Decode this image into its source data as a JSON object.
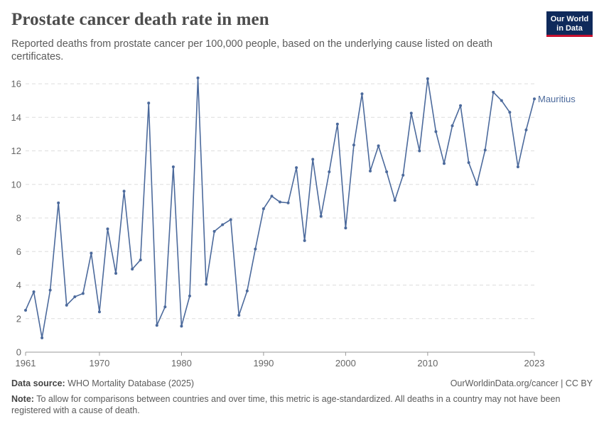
{
  "header": {
    "title": "Prostate cancer death rate in men",
    "subtitle": "Reported deaths from prostate cancer per 100,000 people, based on the underlying cause listed on death certificates."
  },
  "logo": {
    "line1": "Our World",
    "line2": "in Data",
    "bg_color": "#0f2a5b",
    "accent_color": "#c8102e"
  },
  "footer": {
    "source_label": "Data source:",
    "source_text": "WHO Mortality Database (2025)",
    "url_text": "OurWorldinData.org/cancer | CC BY",
    "note_label": "Note:",
    "note_text": "To allow for comparisons between countries and over time, this metric is age-standardized. All deaths in a country may not have been registered with a cause of death."
  },
  "chart_data": {
    "type": "line",
    "title": "Prostate cancer death rate in men",
    "xlabel": "",
    "ylabel": "",
    "xlim": [
      1961,
      2023
    ],
    "ylim": [
      0,
      16
    ],
    "x_ticks": [
      1961,
      1970,
      1980,
      1990,
      2000,
      2010,
      2023
    ],
    "y_ticks": [
      0,
      2,
      4,
      6,
      8,
      10,
      12,
      14,
      16
    ],
    "grid": "horizontal dashed",
    "legend": "inline label at line end",
    "series": [
      {
        "name": "Mauritius",
        "color": "#4c6a9c",
        "x": [
          1961,
          1962,
          1963,
          1964,
          1965,
          1966,
          1967,
          1968,
          1969,
          1970,
          1971,
          1972,
          1973,
          1974,
          1975,
          1976,
          1977,
          1978,
          1979,
          1980,
          1981,
          1982,
          1983,
          1984,
          1985,
          1986,
          1987,
          1988,
          1989,
          1990,
          1991,
          1992,
          1993,
          1994,
          1995,
          1996,
          1997,
          1998,
          1999,
          2000,
          2001,
          2002,
          2003,
          2004,
          2005,
          2006,
          2007,
          2008,
          2009,
          2010,
          2011,
          2012,
          2013,
          2014,
          2015,
          2016,
          2017,
          2018,
          2019,
          2020,
          2021,
          2022,
          2023
        ],
        "y": [
          2.5,
          3.6,
          0.85,
          3.7,
          8.9,
          2.8,
          3.3,
          3.5,
          5.9,
          2.4,
          7.35,
          4.7,
          9.6,
          4.95,
          5.5,
          14.85,
          1.6,
          2.7,
          11.05,
          1.55,
          3.35,
          16.35,
          4.05,
          7.2,
          7.6,
          7.9,
          2.2,
          3.65,
          6.15,
          8.55,
          9.3,
          8.95,
          8.9,
          11.0,
          6.65,
          11.5,
          8.1,
          10.75,
          13.6,
          7.4,
          12.35,
          15.4,
          10.8,
          12.3,
          10.75,
          9.05,
          10.55,
          14.25,
          12.0,
          16.3,
          13.15,
          11.25,
          13.5,
          14.7,
          11.3,
          10.0,
          12.05,
          15.5,
          15.0,
          14.3,
          11.05,
          13.25,
          15.1
        ]
      }
    ]
  }
}
